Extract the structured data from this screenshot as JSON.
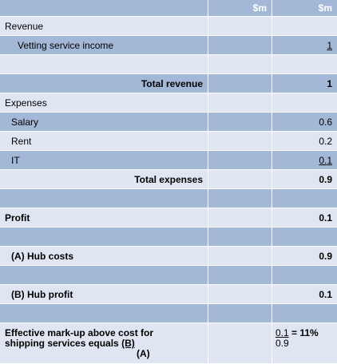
{
  "header": {
    "col2": "$m",
    "col3": "$m"
  },
  "revenue": {
    "label": "Revenue",
    "vetting_label": "Vetting service income",
    "vetting_value": "1",
    "total_label": "Total revenue",
    "total_value": "1"
  },
  "expenses": {
    "label": "Expenses",
    "items": [
      {
        "label": "Salary",
        "value": "0.6"
      },
      {
        "label": "Rent",
        "value": "0.2"
      },
      {
        "label": "IT",
        "value": "0.1"
      }
    ],
    "total_label": "Total expenses",
    "total_value": "0.9"
  },
  "profit": {
    "label": "Profit",
    "value": "0.1"
  },
  "hub_costs": {
    "label": "(A) Hub costs",
    "value": "0.9"
  },
  "hub_profit": {
    "label": "(B) Hub profit",
    "value": "0.1"
  },
  "markup": {
    "label_line1": "Effective mark-up above cost for",
    "label_line2": "shipping services equals",
    "label_b": "(B)",
    "label_a": "(A)",
    "numerator": "0.1",
    "equals": "= 11%",
    "denominator": "0.9"
  }
}
